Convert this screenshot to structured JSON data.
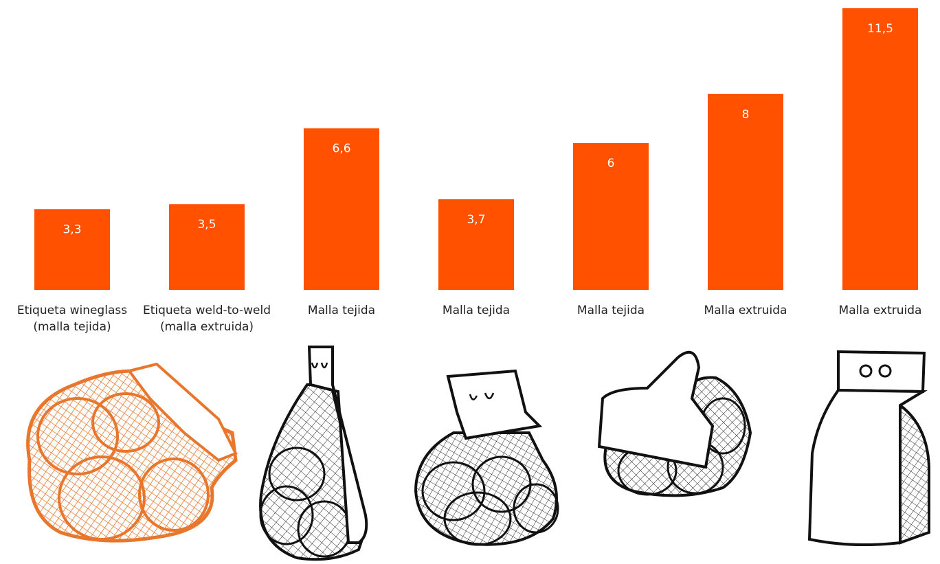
{
  "chart_data": {
    "type": "bar",
    "categories": [
      "Etiqueta wineglass (malla tejida)",
      "Etiqueta weld-to-weld (malla extruida)",
      "Malla tejida",
      "Malla tejida",
      "Malla tejida",
      "Malla extruida",
      "Malla extruida"
    ],
    "values": [
      3.3,
      3.5,
      6.6,
      3.7,
      6,
      8,
      11.5
    ],
    "value_labels": [
      "3,3",
      "3,5",
      "6,6",
      "3,7",
      "6",
      "8",
      "11,5"
    ],
    "title": "",
    "xlabel": "",
    "ylabel": "",
    "ylim": [
      0,
      11.5
    ],
    "grid": false,
    "bar_color": "#FF5100",
    "value_label_color": "#ffffff",
    "legend": "none"
  },
  "illustrations": [
    {
      "name": "woven-mesh-bag-wineglass-label-orange",
      "color": "#E8762C"
    },
    {
      "name": "extruded-mesh-bag-weld-to-weld-label",
      "color": "#111111"
    },
    {
      "name": "woven-mesh-bag-top-label",
      "color": "#111111"
    },
    {
      "name": "woven-mesh-bag-handle-label",
      "color": "#111111"
    },
    {
      "name": "extruded-mesh-box-bag",
      "color": "#111111"
    }
  ]
}
